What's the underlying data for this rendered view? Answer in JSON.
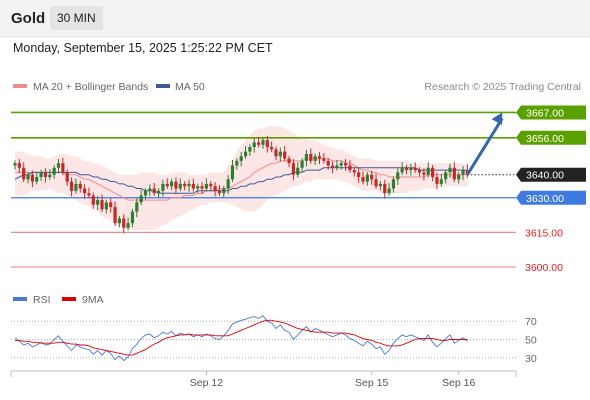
{
  "header": {
    "instrument": "Gold",
    "timeframe": "30 MIN",
    "datetime": "Monday, September 15, 2025 1:25:22 PM CET"
  },
  "credit": "Research © 2025 Trading Central",
  "colors": {
    "up_candle": "#2f7d32",
    "down_candle": "#c62828",
    "ma20": "#f28b8b",
    "ma50": "#3d5a98",
    "bollinger_fill": "#fde3e3",
    "resistance": "#5aa100",
    "pivot": "#3d7be0",
    "support": "#f28b8b",
    "current": "#222222",
    "arrow": "#3366aa",
    "rsi": "#4a78d6",
    "rsi_ma": "#e00000"
  },
  "chart_data": [
    {
      "type": "candlestick",
      "legend": [
        {
          "name": "MA 20 + Bollinger Bands",
          "color": "#f28b8b"
        },
        {
          "name": "MA 50",
          "color": "#3d5a98"
        }
      ],
      "x_ticks": [
        {
          "index": 44,
          "label": "Sep 12"
        },
        {
          "index": 82,
          "label": "Sep 15"
        },
        {
          "index": 102,
          "label": "Sep 16"
        }
      ],
      "ylim": [
        3590,
        3675
      ],
      "levels": [
        {
          "label": "3667.00",
          "value": 3667,
          "kind": "resistance"
        },
        {
          "label": "3656.00",
          "value": 3656,
          "kind": "resistance"
        },
        {
          "label": "3640.00",
          "value": 3640,
          "kind": "current"
        },
        {
          "label": "3630.00",
          "value": 3630,
          "kind": "pivot"
        },
        {
          "label": "3615.00",
          "value": 3615,
          "kind": "support"
        },
        {
          "label": "3600.00",
          "value": 3600,
          "kind": "support"
        }
      ],
      "forecast_arrow": {
        "from_index": 104,
        "from_value": 3640,
        "to_index": 112,
        "to_value": 3667
      },
      "closes": [
        3645,
        3643,
        3638,
        3640,
        3637,
        3639,
        3641,
        3639,
        3640,
        3643,
        3645,
        3641,
        3637,
        3633,
        3636,
        3634,
        3632,
        3631,
        3627,
        3629,
        3625,
        3628,
        3626,
        3619,
        3621,
        3617,
        3619,
        3624,
        3628,
        3631,
        3633,
        3634,
        3632,
        3633,
        3636,
        3635,
        3637,
        3634,
        3636,
        3635,
        3636,
        3634,
        3635,
        3634,
        3636,
        3635,
        3633,
        3632,
        3634,
        3638,
        3644,
        3646,
        3648,
        3650,
        3652,
        3654,
        3653,
        3655,
        3652,
        3651,
        3648,
        3650,
        3647,
        3645,
        3640,
        3643,
        3646,
        3649,
        3646,
        3648,
        3647,
        3646,
        3644,
        3643,
        3644,
        3645,
        3644,
        3642,
        3641,
        3639,
        3637,
        3640,
        3638,
        3635,
        3636,
        3632,
        3634,
        3638,
        3641,
        3643,
        3642,
        3643,
        3642,
        3641,
        3640,
        3643,
        3639,
        3636,
        3638,
        3641,
        3643,
        3638,
        3640,
        3642,
        3640
      ],
      "bb_upper": [
        3650,
        3650,
        3650,
        3649,
        3648,
        3648,
        3648,
        3647,
        3647,
        3648,
        3649,
        3649,
        3649,
        3648,
        3648,
        3647,
        3646,
        3646,
        3645,
        3645,
        3644,
        3643,
        3642,
        3641,
        3640,
        3640,
        3640,
        3640,
        3640,
        3641,
        3641,
        3641,
        3641,
        3640,
        3640,
        3640,
        3641,
        3641,
        3641,
        3641,
        3640,
        3640,
        3640,
        3640,
        3640,
        3641,
        3641,
        3641,
        3641,
        3644,
        3647,
        3650,
        3653,
        3655,
        3657,
        3659,
        3660,
        3660,
        3661,
        3661,
        3661,
        3661,
        3660,
        3659,
        3658,
        3657,
        3656,
        3656,
        3655,
        3655,
        3654,
        3653,
        3652,
        3652,
        3651,
        3651,
        3650,
        3649,
        3648,
        3647,
        3647,
        3647,
        3647,
        3646,
        3646,
        3646,
        3646,
        3646,
        3646,
        3646,
        3646,
        3645,
        3645,
        3645,
        3645,
        3645,
        3645,
        3645,
        3645,
        3645,
        3645,
        3645,
        3645,
        3645,
        3645
      ],
      "ma20": [
        3641,
        3641,
        3641,
        3641,
        3641,
        3641,
        3641,
        3641,
        3641,
        3641,
        3641,
        3641,
        3640,
        3640,
        3640,
        3639,
        3638,
        3638,
        3637,
        3636,
        3635,
        3634,
        3633,
        3632,
        3631,
        3630,
        3629,
        3629,
        3629,
        3629,
        3629,
        3629,
        3629,
        3629,
        3629,
        3629,
        3630,
        3630,
        3630,
        3631,
        3631,
        3631,
        3632,
        3632,
        3633,
        3633,
        3633,
        3634,
        3634,
        3634,
        3635,
        3636,
        3637,
        3638,
        3639,
        3641,
        3642,
        3643,
        3644,
        3645,
        3645,
        3646,
        3646,
        3646,
        3646,
        3646,
        3646,
        3647,
        3647,
        3647,
        3647,
        3647,
        3647,
        3646,
        3646,
        3646,
        3645,
        3645,
        3644,
        3643,
        3642,
        3642,
        3641,
        3641,
        3640,
        3640,
        3639,
        3639,
        3639,
        3639,
        3639,
        3639,
        3639,
        3639,
        3639,
        3640,
        3640,
        3640,
        3640,
        3640,
        3640,
        3640,
        3640,
        3640,
        3640
      ],
      "bb_lower": [
        3631,
        3631,
        3631,
        3632,
        3633,
        3633,
        3633,
        3633,
        3634,
        3633,
        3632,
        3632,
        3631,
        3630,
        3629,
        3628,
        3627,
        3626,
        3625,
        3624,
        3622,
        3621,
        3620,
        3619,
        3618,
        3617,
        3616,
        3616,
        3616,
        3616,
        3616,
        3616,
        3616,
        3617,
        3618,
        3619,
        3620,
        3621,
        3622,
        3623,
        3624,
        3625,
        3626,
        3627,
        3627,
        3628,
        3628,
        3628,
        3628,
        3628,
        3627,
        3626,
        3625,
        3624,
        3624,
        3624,
        3625,
        3627,
        3629,
        3630,
        3631,
        3632,
        3633,
        3634,
        3635,
        3635,
        3636,
        3637,
        3637,
        3638,
        3638,
        3638,
        3638,
        3638,
        3638,
        3637,
        3637,
        3636,
        3635,
        3634,
        3633,
        3633,
        3633,
        3633,
        3632,
        3632,
        3632,
        3632,
        3632,
        3632,
        3632,
        3633,
        3633,
        3633,
        3634,
        3634,
        3634,
        3634,
        3635,
        3635,
        3635,
        3635,
        3635,
        3635,
        3635
      ],
      "ma50": [
        3638,
        3639,
        3640,
        3640,
        3641,
        3641,
        3641,
        3641,
        3641,
        3641,
        3641,
        3641,
        3641,
        3641,
        3641,
        3640,
        3640,
        3640,
        3639,
        3639,
        3638,
        3638,
        3637,
        3637,
        3636,
        3636,
        3635,
        3635,
        3634,
        3634,
        3633,
        3633,
        3633,
        3632,
        3632,
        3632,
        3632,
        3632,
        3632,
        3632,
        3632,
        3632,
        3633,
        3633,
        3633,
        3633,
        3633,
        3633,
        3633,
        3633,
        3634,
        3634,
        3635,
        3635,
        3636,
        3636,
        3637,
        3637,
        3638,
        3638,
        3639,
        3639,
        3640,
        3640,
        3641,
        3641,
        3641,
        3642,
        3642,
        3642,
        3642,
        3643,
        3643,
        3643,
        3643,
        3643,
        3643,
        3643,
        3643,
        3643,
        3643,
        3643,
        3643,
        3643,
        3643,
        3643,
        3643,
        3643,
        3643,
        3643,
        3643,
        3643,
        3643,
        3642,
        3642,
        3642,
        3642,
        3642,
        3642,
        3642,
        3642,
        3642,
        3642,
        3642,
        3642
      ]
    },
    {
      "type": "line",
      "legend": [
        {
          "name": "RSI",
          "color": "#4a78d6"
        },
        {
          "name": "9MA",
          "color": "#e00000"
        }
      ],
      "y_ticks": [
        "70",
        "50",
        "30"
      ],
      "ylim": [
        20,
        80
      ],
      "rsi": [
        52,
        48,
        44,
        46,
        42,
        44,
        47,
        44,
        45,
        50,
        54,
        48,
        43,
        38,
        44,
        42,
        40,
        39,
        34,
        38,
        33,
        38,
        35,
        28,
        32,
        27,
        31,
        40,
        45,
        51,
        55,
        56,
        52,
        54,
        58,
        56,
        59,
        54,
        57,
        55,
        56,
        53,
        55,
        53,
        56,
        54,
        51,
        50,
        54,
        60,
        67,
        69,
        71,
        72,
        74,
        75,
        73,
        76,
        70,
        68,
        62,
        66,
        60,
        58,
        50,
        55,
        60,
        64,
        58,
        62,
        60,
        58,
        55,
        53,
        55,
        57,
        55,
        51,
        49,
        46,
        43,
        48,
        45,
        40,
        42,
        34,
        38,
        46,
        51,
        55,
        53,
        55,
        53,
        51,
        49,
        55,
        47,
        42,
        46,
        51,
        55,
        46,
        49,
        52,
        48
      ],
      "rsi_ma": [
        49,
        49,
        48,
        48,
        47,
        47,
        46,
        46,
        46,
        46,
        47,
        47,
        46,
        45,
        45,
        44,
        44,
        43,
        41,
        40,
        39,
        38,
        37,
        36,
        35,
        34,
        33,
        33,
        35,
        37,
        39,
        42,
        45,
        47,
        50,
        52,
        53,
        54,
        55,
        55,
        56,
        55,
        55,
        55,
        55,
        55,
        54,
        54,
        54,
        54,
        56,
        58,
        60,
        62,
        64,
        66,
        68,
        70,
        71,
        71,
        70,
        69,
        68,
        66,
        64,
        62,
        61,
        60,
        59,
        58,
        58,
        58,
        58,
        57,
        57,
        57,
        57,
        56,
        55,
        53,
        51,
        50,
        49,
        47,
        46,
        44,
        43,
        43,
        43,
        44,
        46,
        48,
        50,
        51,
        51,
        51,
        51,
        50,
        49,
        49,
        50,
        50,
        50,
        50,
        50
      ]
    }
  ]
}
